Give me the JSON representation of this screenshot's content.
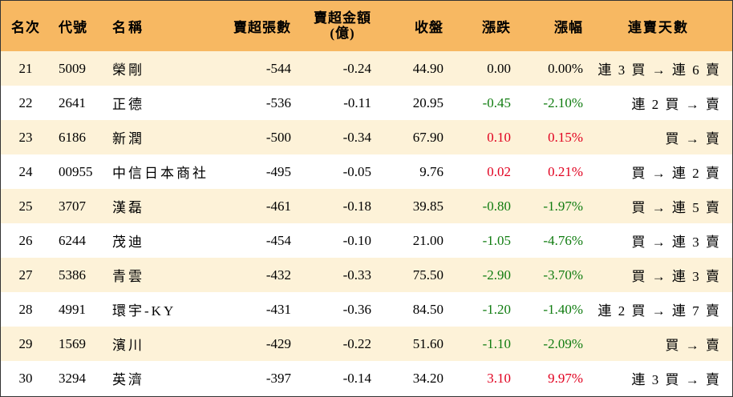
{
  "headers": {
    "rank": "名次",
    "code": "代號",
    "name": "名稱",
    "net_sell_shares": "賣超張數",
    "net_sell_amount_line1": "賣超金額",
    "net_sell_amount_line2": "(億)",
    "close": "收盤",
    "change": "漲跌",
    "change_pct": "漲幅",
    "streak": "連賣天數"
  },
  "colors": {
    "header_bg": "#f7b862",
    "odd_row_bg": "#fdf2d8",
    "up": "#e1001f",
    "down": "#107c10"
  },
  "rows": [
    {
      "rank": "21",
      "code": "5009",
      "name": "榮剛",
      "shares": "-544",
      "amount": "-0.24",
      "close": "44.90",
      "change": "0.00",
      "pct": "0.00%",
      "dir": "flat",
      "streak": "連 3 買 → 連 6 賣"
    },
    {
      "rank": "22",
      "code": "2641",
      "name": "正德",
      "shares": "-536",
      "amount": "-0.11",
      "close": "20.95",
      "change": "-0.45",
      "pct": "-2.10%",
      "dir": "down",
      "streak": "連 2 買 → 賣"
    },
    {
      "rank": "23",
      "code": "6186",
      "name": "新潤",
      "shares": "-500",
      "amount": "-0.34",
      "close": "67.90",
      "change": "0.10",
      "pct": "0.15%",
      "dir": "up",
      "streak": "買 → 賣"
    },
    {
      "rank": "24",
      "code": "00955",
      "name": "中信日本商社",
      "shares": "-495",
      "amount": "-0.05",
      "close": "9.76",
      "change": "0.02",
      "pct": "0.21%",
      "dir": "up",
      "streak": "買 → 連 2 賣"
    },
    {
      "rank": "25",
      "code": "3707",
      "name": "漢磊",
      "shares": "-461",
      "amount": "-0.18",
      "close": "39.85",
      "change": "-0.80",
      "pct": "-1.97%",
      "dir": "down",
      "streak": "買 → 連 5 賣"
    },
    {
      "rank": "26",
      "code": "6244",
      "name": "茂迪",
      "shares": "-454",
      "amount": "-0.10",
      "close": "21.00",
      "change": "-1.05",
      "pct": "-4.76%",
      "dir": "down",
      "streak": "買 → 連 3 賣"
    },
    {
      "rank": "27",
      "code": "5386",
      "name": "青雲",
      "shares": "-432",
      "amount": "-0.33",
      "close": "75.50",
      "change": "-2.90",
      "pct": "-3.70%",
      "dir": "down",
      "streak": "買 → 連 3 賣"
    },
    {
      "rank": "28",
      "code": "4991",
      "name": "環宇-KY",
      "shares": "-431",
      "amount": "-0.36",
      "close": "84.50",
      "change": "-1.20",
      "pct": "-1.40%",
      "dir": "down",
      "streak": "連 2 買 → 連 7 賣"
    },
    {
      "rank": "29",
      "code": "1569",
      "name": "濱川",
      "shares": "-429",
      "amount": "-0.22",
      "close": "51.60",
      "change": "-1.10",
      "pct": "-2.09%",
      "dir": "down",
      "streak": "買 → 賣"
    },
    {
      "rank": "30",
      "code": "3294",
      "name": "英濟",
      "shares": "-397",
      "amount": "-0.14",
      "close": "34.20",
      "change": "3.10",
      "pct": "9.97%",
      "dir": "up",
      "streak": "連 3 買 → 賣"
    }
  ]
}
